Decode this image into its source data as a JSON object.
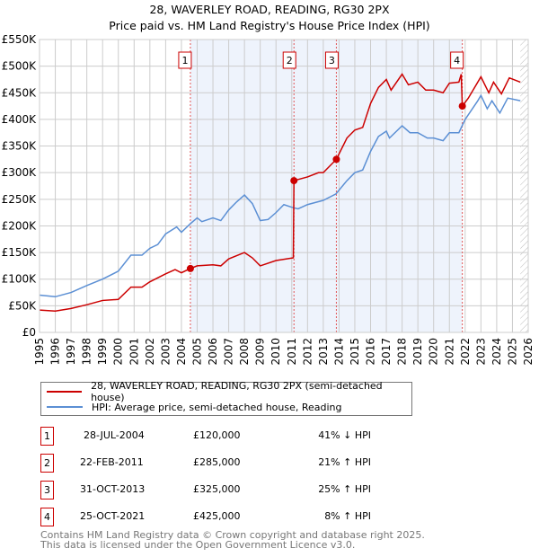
{
  "title": "28, WAVERLEY ROAD, READING, RG30 2PX",
  "subtitle": "Price paid vs. HM Land Registry's House Price Index (HPI)",
  "chart_data": {
    "type": "line",
    "title": "28, WAVERLEY ROAD, READING, RG30 2PX",
    "xlim": [
      1995,
      2026
    ],
    "ylim": [
      0,
      550000
    ],
    "yticks": [
      0,
      50000,
      100000,
      150000,
      200000,
      250000,
      300000,
      350000,
      400000,
      450000,
      500000,
      550000
    ],
    "ytick_labels": [
      "£0",
      "£50K",
      "£100K",
      "£150K",
      "£200K",
      "£250K",
      "£300K",
      "£350K",
      "£400K",
      "£450K",
      "£500K",
      "£550K"
    ],
    "xtick_labels": [
      "1995",
      "1996",
      "1997",
      "1998",
      "1999",
      "2000",
      "2001",
      "2002",
      "2003",
      "2004",
      "2005",
      "2006",
      "2007",
      "2008",
      "2009",
      "2010",
      "2011",
      "2012",
      "2013",
      "2014",
      "2015",
      "2016",
      "2017",
      "2018",
      "2019",
      "2020",
      "2021",
      "2022",
      "2023",
      "2024",
      "2025",
      "2026"
    ],
    "grid": true,
    "shaded_range": [
      2004.57,
      2021.82
    ],
    "hatched_after": 2025.5,
    "series": [
      {
        "name": "28, WAVERLEY ROAD, READING, RG30 2PX (semi-detached house)",
        "color": "#cc0000",
        "x": [
          1995,
          1996,
          1997,
          1998,
          1999,
          2000,
          2000.8,
          2001.5,
          2002,
          2003,
          2003.6,
          2004,
          2004.57,
          2005,
          2006,
          2006.5,
          2007,
          2008,
          2008.5,
          2009,
          2010,
          2011.1,
          2011.14,
          2012,
          2012.7,
          2013,
          2013.83,
          2014.5,
          2015,
          2015.5,
          2016,
          2016.5,
          2017,
          2017.3,
          2018,
          2018.4,
          2019,
          2019.5,
          2020,
          2020.6,
          2021,
          2021.6,
          2021.75,
          2021.82,
          2022.2,
          2023,
          2023.5,
          2023.8,
          2024.3,
          2024.8,
          2025.5
        ],
        "y": [
          42000,
          40000,
          45000,
          52000,
          60000,
          62000,
          85000,
          85000,
          95000,
          110000,
          118000,
          112000,
          120000,
          125000,
          127000,
          125000,
          138000,
          150000,
          140000,
          125000,
          135000,
          140000,
          285000,
          292000,
          300000,
          300000,
          325000,
          365000,
          380000,
          385000,
          430000,
          460000,
          475000,
          455000,
          485000,
          465000,
          470000,
          455000,
          455000,
          450000,
          468000,
          470000,
          485000,
          425000,
          440000,
          480000,
          450000,
          470000,
          448000,
          478000,
          470000
        ]
      },
      {
        "name": "HPI: Average price, semi-detached house, Reading",
        "color": "#5b8fd4",
        "x": [
          1995,
          1996,
          1997,
          1998,
          1999,
          2000,
          2000.8,
          2001.5,
          2002,
          2002.5,
          2003,
          2003.7,
          2004,
          2004.6,
          2005,
          2005.3,
          2006,
          2006.5,
          2007,
          2007.5,
          2008,
          2008.5,
          2009,
          2009.5,
          2010,
          2010.5,
          2011,
          2011.4,
          2012,
          2013,
          2013.8,
          2014.5,
          2015,
          2015.5,
          2016,
          2016.5,
          2017,
          2017.2,
          2018,
          2018.5,
          2019,
          2019.6,
          2020,
          2020.6,
          2021,
          2021.6,
          2022,
          2022.8,
          2023,
          2023.4,
          2023.7,
          2024.2,
          2024.7,
          2025.5
        ],
        "y": [
          70000,
          67000,
          75000,
          88000,
          100000,
          115000,
          145000,
          145000,
          158000,
          165000,
          185000,
          198000,
          188000,
          205000,
          215000,
          208000,
          215000,
          210000,
          230000,
          245000,
          258000,
          242000,
          210000,
          212000,
          225000,
          240000,
          235000,
          232000,
          240000,
          248000,
          260000,
          285000,
          300000,
          305000,
          340000,
          368000,
          378000,
          365000,
          388000,
          375000,
          375000,
          365000,
          365000,
          360000,
          375000,
          375000,
          400000,
          435000,
          445000,
          420000,
          435000,
          412000,
          440000,
          435000
        ]
      }
    ],
    "sales": [
      {
        "label": "1",
        "x": 2004.57,
        "y": 120000,
        "date": "28-JUL-2004",
        "price": "£120,000",
        "hpi": "41% ↓ HPI"
      },
      {
        "label": "2",
        "x": 2011.14,
        "y": 285000,
        "date": "22-FEB-2011",
        "price": "£285,000",
        "hpi": "21% ↑ HPI"
      },
      {
        "label": "3",
        "x": 2013.83,
        "y": 325000,
        "date": "31-OCT-2013",
        "price": "£325,000",
        "hpi": "25% ↑ HPI"
      },
      {
        "label": "4",
        "x": 2021.82,
        "y": 425000,
        "date": "25-OCT-2021",
        "price": "£425,000",
        "hpi": "8% ↑ HPI"
      }
    ]
  },
  "legend": {
    "property": "28, WAVERLEY ROAD, READING, RG30 2PX (semi-detached house)",
    "hpi": "HPI: Average price, semi-detached house, Reading"
  },
  "footer": {
    "line1": "Contains HM Land Registry data © Crown copyright and database right 2025.",
    "line2": "This data is licensed under the Open Government Licence v3.0."
  }
}
